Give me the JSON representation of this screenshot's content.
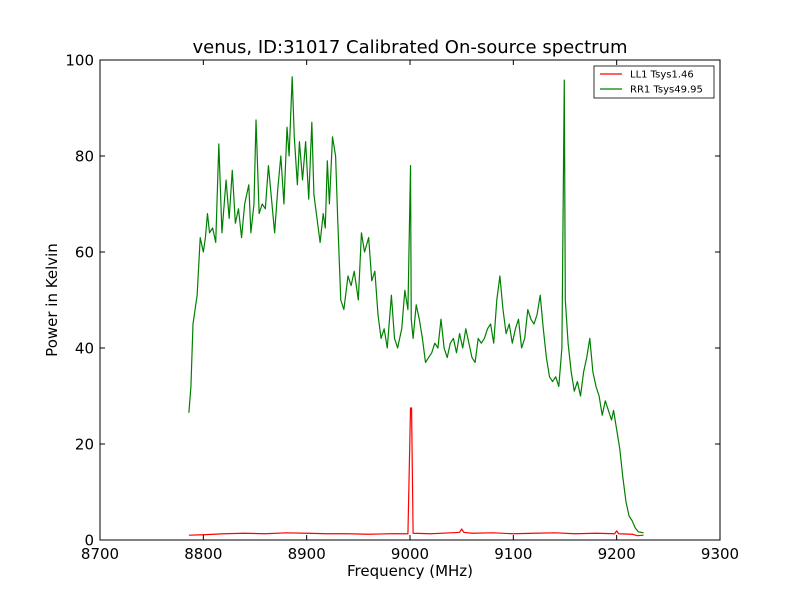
{
  "chart_data": {
    "type": "line",
    "title": "venus, ID:31017 Calibrated On-source spectrum",
    "xlabel": "Frequency (MHz)",
    "ylabel": "Power in Kelvin",
    "xlim": [
      8700,
      9300
    ],
    "ylim": [
      0,
      100
    ],
    "xticks": [
      "8700",
      "8800",
      "8900",
      "9000",
      "9100",
      "9200",
      "9300"
    ],
    "yticks": [
      "0",
      "20",
      "40",
      "60",
      "80",
      "100"
    ],
    "grid": false,
    "legend_position": "top-right",
    "series": [
      {
        "name": "LL1 Tsys1.46",
        "color": "#ff0000",
        "points": [
          [
            8786,
            1.0
          ],
          [
            8800,
            1.1
          ],
          [
            8820,
            1.3
          ],
          [
            8840,
            1.4
          ],
          [
            8860,
            1.3
          ],
          [
            8880,
            1.5
          ],
          [
            8900,
            1.4
          ],
          [
            8920,
            1.3
          ],
          [
            8940,
            1.3
          ],
          [
            8960,
            1.2
          ],
          [
            8980,
            1.3
          ],
          [
            8998,
            1.3
          ],
          [
            9000.5,
            27.5
          ],
          [
            9001.5,
            27.5
          ],
          [
            9003,
            1.4
          ],
          [
            9020,
            1.3
          ],
          [
            9040,
            1.5
          ],
          [
            9048,
            1.6
          ],
          [
            9050,
            2.3
          ],
          [
            9052,
            1.6
          ],
          [
            9060,
            1.4
          ],
          [
            9080,
            1.5
          ],
          [
            9100,
            1.3
          ],
          [
            9120,
            1.4
          ],
          [
            9140,
            1.5
          ],
          [
            9160,
            1.3
          ],
          [
            9180,
            1.4
          ],
          [
            9198,
            1.3
          ],
          [
            9200,
            1.9
          ],
          [
            9202,
            1.3
          ],
          [
            9215,
            1.2
          ],
          [
            9220,
            0.9
          ],
          [
            9226,
            1.0
          ]
        ]
      },
      {
        "name": "RR1 Tsys49.95",
        "color": "#008000",
        "points": [
          [
            8786,
            26.5
          ],
          [
            8788,
            32
          ],
          [
            8790,
            45
          ],
          [
            8794,
            51
          ],
          [
            8797,
            63
          ],
          [
            8800,
            60
          ],
          [
            8802,
            63
          ],
          [
            8804,
            68
          ],
          [
            8806,
            64
          ],
          [
            8809,
            65
          ],
          [
            8812,
            62
          ],
          [
            8815,
            82.5
          ],
          [
            8818,
            64
          ],
          [
            8822,
            75
          ],
          [
            8825,
            67
          ],
          [
            8828,
            77
          ],
          [
            8831,
            66
          ],
          [
            8834,
            69
          ],
          [
            8837,
            63
          ],
          [
            8840,
            70
          ],
          [
            8844,
            74
          ],
          [
            8846,
            64
          ],
          [
            8849,
            70
          ],
          [
            8851,
            87.5
          ],
          [
            8854,
            68
          ],
          [
            8857,
            70
          ],
          [
            8860,
            69
          ],
          [
            8863,
            78
          ],
          [
            8866,
            71
          ],
          [
            8869,
            64
          ],
          [
            8872,
            73
          ],
          [
            8875,
            80
          ],
          [
            8878,
            70
          ],
          [
            8881,
            86
          ],
          [
            8883,
            80
          ],
          [
            8886,
            96.5
          ],
          [
            8888,
            84
          ],
          [
            8891,
            74
          ],
          [
            8893,
            83
          ],
          [
            8896,
            75
          ],
          [
            8899,
            83
          ],
          [
            8902,
            71
          ],
          [
            8905,
            87
          ],
          [
            8907,
            72
          ],
          [
            8910,
            67
          ],
          [
            8913,
            62
          ],
          [
            8916,
            68
          ],
          [
            8918,
            65
          ],
          [
            8920,
            79
          ],
          [
            8922,
            70
          ],
          [
            8925,
            84
          ],
          [
            8928,
            80
          ],
          [
            8930,
            67
          ],
          [
            8933,
            50
          ],
          [
            8936,
            48
          ],
          [
            8940,
            55
          ],
          [
            8943,
            53
          ],
          [
            8946,
            56
          ],
          [
            8950,
            50
          ],
          [
            8953,
            64
          ],
          [
            8956,
            60
          ],
          [
            8960,
            63
          ],
          [
            8963,
            54
          ],
          [
            8966,
            56
          ],
          [
            8969,
            47
          ],
          [
            8972,
            42
          ],
          [
            8975,
            44
          ],
          [
            8978,
            40
          ],
          [
            8982,
            51
          ],
          [
            8985,
            42
          ],
          [
            8988,
            40
          ],
          [
            8992,
            44
          ],
          [
            8995,
            52
          ],
          [
            8998,
            48
          ],
          [
            9000.5,
            78
          ],
          [
            9001.2,
            46
          ],
          [
            9003,
            42
          ],
          [
            9006,
            49
          ],
          [
            9009,
            46
          ],
          [
            9012,
            42
          ],
          [
            9015,
            37
          ],
          [
            9018,
            38
          ],
          [
            9021,
            39
          ],
          [
            9024,
            41
          ],
          [
            9027,
            40
          ],
          [
            9030,
            46
          ],
          [
            9033,
            40
          ],
          [
            9036,
            38
          ],
          [
            9039,
            41
          ],
          [
            9042,
            42
          ],
          [
            9045,
            39
          ],
          [
            9048,
            43
          ],
          [
            9051,
            40
          ],
          [
            9054,
            44
          ],
          [
            9057,
            41
          ],
          [
            9060,
            38
          ],
          [
            9063,
            37
          ],
          [
            9066,
            42
          ],
          [
            9069,
            41
          ],
          [
            9072,
            42
          ],
          [
            9075,
            44
          ],
          [
            9078,
            45
          ],
          [
            9081,
            41
          ],
          [
            9084,
            50
          ],
          [
            9087,
            55
          ],
          [
            9090,
            48
          ],
          [
            9093,
            43
          ],
          [
            9096,
            45
          ],
          [
            9099,
            41
          ],
          [
            9102,
            44
          ],
          [
            9105,
            46
          ],
          [
            9108,
            40
          ],
          [
            9111,
            42
          ],
          [
            9114,
            48
          ],
          [
            9117,
            46
          ],
          [
            9120,
            45
          ],
          [
            9123,
            47
          ],
          [
            9126,
            51
          ],
          [
            9129,
            44
          ],
          [
            9132,
            38
          ],
          [
            9135,
            34
          ],
          [
            9138,
            33
          ],
          [
            9141,
            34
          ],
          [
            9144,
            32
          ],
          [
            9147,
            40
          ],
          [
            9149.3,
            95.8
          ],
          [
            9150.3,
            50
          ],
          [
            9153,
            41
          ],
          [
            9156,
            35
          ],
          [
            9159,
            31
          ],
          [
            9162,
            33
          ],
          [
            9165,
            30
          ],
          [
            9168,
            35
          ],
          [
            9171,
            38
          ],
          [
            9174,
            42
          ],
          [
            9177,
            35
          ],
          [
            9180,
            32
          ],
          [
            9183,
            30
          ],
          [
            9186,
            26
          ],
          [
            9189,
            29
          ],
          [
            9192,
            27
          ],
          [
            9195,
            25
          ],
          [
            9197,
            27
          ],
          [
            9200,
            23
          ],
          [
            9203,
            19
          ],
          [
            9206,
            13
          ],
          [
            9209,
            8
          ],
          [
            9212,
            5
          ],
          [
            9215,
            4
          ],
          [
            9218,
            2.5
          ],
          [
            9221,
            1.7
          ],
          [
            9226,
            1.5
          ]
        ]
      }
    ]
  }
}
